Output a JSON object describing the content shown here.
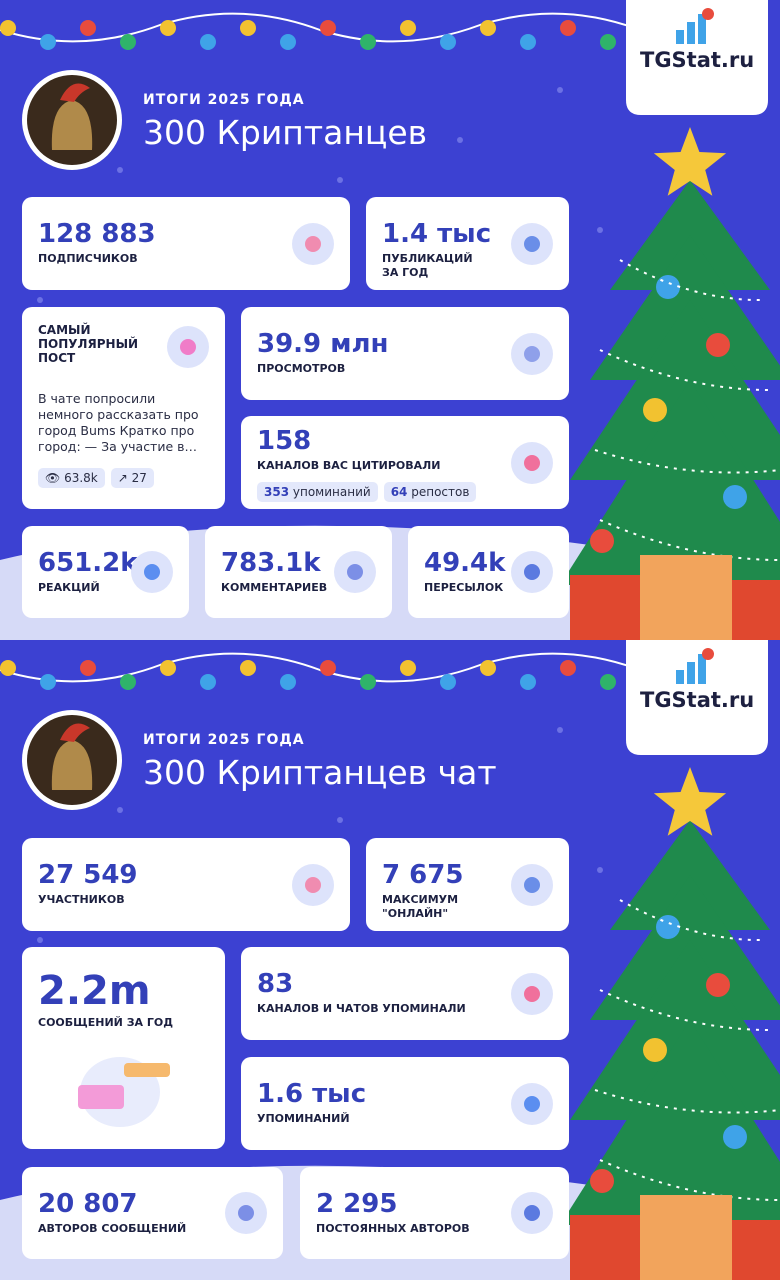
{
  "panels": [
    {
      "brand": "TGStat.ru",
      "subtitle": "ИТОГИ 2025 ГОДА",
      "title": "300 Криптанцев",
      "stats": [
        {
          "value": "128 883",
          "label": "ПОДПИСЧИКОВ"
        },
        {
          "value": "1.4 тыс",
          "label": "ПУБЛИКАЦИЙ ЗА ГОД"
        },
        {
          "value": "39.9 млн",
          "label": "ПРОСМОТРОВ"
        },
        {
          "value": "158",
          "label": "КАНАЛОВ ВАС ЦИТИРОВАЛИ"
        },
        {
          "value": "651.2k",
          "label": "РЕАКЦИЙ"
        },
        {
          "value": "783.1k",
          "label": "КОММЕНТАРИЕВ"
        },
        {
          "value": "49.4k",
          "label": "ПЕРЕСЫЛОК"
        }
      ],
      "popular_post": {
        "heading": "САМЫЙ ПОПУЛЯРНЫЙ ПОСТ",
        "text": "В чате попросили немного рассказать про город Bums Кратко про город: — За участие в…",
        "views": "63.8k",
        "shares": "27"
      },
      "citations": [
        {
          "count": "353",
          "label": "упоминаний"
        },
        {
          "count": "64",
          "label": "репостов"
        }
      ]
    },
    {
      "brand": "TGStat.ru",
      "subtitle": "ИТОГИ 2025 ГОДА",
      "title": "300 Криптанцев чат",
      "stats": [
        {
          "value": "27 549",
          "label": "УЧАСТНИКОВ"
        },
        {
          "value": "7 675",
          "label": "МАКСИМУМ \"ОНЛАЙН\""
        },
        {
          "value": "2.2m",
          "label": "СООБЩЕНИЙ ЗА ГОД"
        },
        {
          "value": "83",
          "label": "КАНАЛОВ И ЧАТОВ УПОМИНАЛИ"
        },
        {
          "value": "1.6 тыс",
          "label": "УПОМИНАНИЙ"
        },
        {
          "value": "20 807",
          "label": "АВТОРОВ СООБЩЕНИЙ"
        },
        {
          "value": "2 295",
          "label": "ПОСТОЯННЫХ АВТОРОВ"
        }
      ]
    }
  ]
}
